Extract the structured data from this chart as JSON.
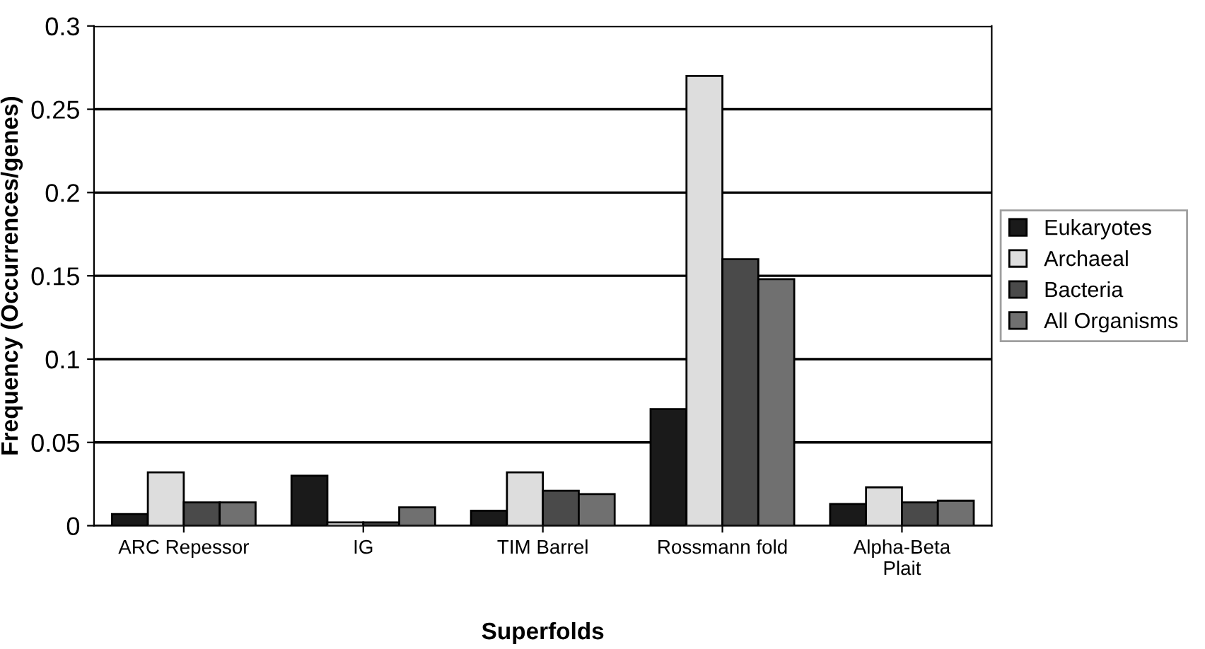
{
  "chart_data": {
    "type": "bar",
    "xlabel": "Superfolds",
    "ylabel": "Frequency (Occurrences/genes)",
    "categories": [
      "ARC Repessor",
      "IG",
      "TIM Barrel",
      "Rossmann fold",
      "Alpha-Beta\nPlait"
    ],
    "series": [
      {
        "name": "Eukaryotes",
        "color": "#1a1a1a",
        "values": [
          0.007,
          0.03,
          0.009,
          0.07,
          0.013
        ]
      },
      {
        "name": "Archaeal",
        "color": "#dddddd",
        "values": [
          0.032,
          0.002,
          0.032,
          0.27,
          0.023
        ]
      },
      {
        "name": "Bacteria",
        "color": "#4a4a4a",
        "values": [
          0.014,
          0.002,
          0.021,
          0.16,
          0.014
        ]
      },
      {
        "name": "All Organisms",
        "color": "#707070",
        "values": [
          0.014,
          0.011,
          0.019,
          0.148,
          0.015
        ]
      }
    ],
    "ylim": [
      0,
      0.3
    ],
    "yticks": [
      0,
      0.05,
      0.1,
      0.15,
      0.2,
      0.25,
      0.3
    ],
    "grid": "y",
    "legend": "right"
  }
}
